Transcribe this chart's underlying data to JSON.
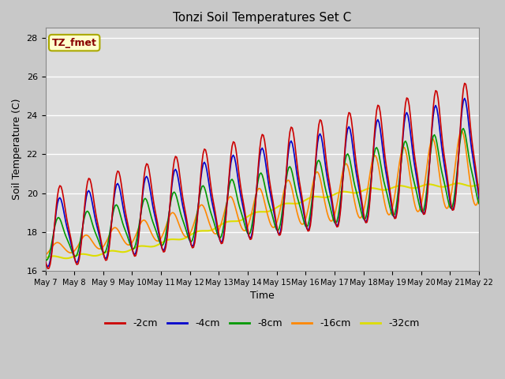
{
  "title": "Tonzi Soil Temperatures Set C",
  "xlabel": "Time",
  "ylabel": "Soil Temperature (C)",
  "ylim": [
    16,
    28.5
  ],
  "xlim": [
    0,
    360
  ],
  "fig_bg_color": "#c8c8c8",
  "plot_bg_color": "#dcdcdc",
  "grid_color": "#ffffff",
  "annotation_text": "TZ_fmet",
  "annotation_bg": "#ffffcc",
  "annotation_border": "#aaa800",
  "annotation_fg": "#880000",
  "series": {
    "-2cm": {
      "color": "#cc0000",
      "lw": 1.2
    },
    "-4cm": {
      "color": "#0000cc",
      "lw": 1.2
    },
    "-8cm": {
      "color": "#009900",
      "lw": 1.2
    },
    "-16cm": {
      "color": "#ff8800",
      "lw": 1.2
    },
    "-32cm": {
      "color": "#dddd00",
      "lw": 1.5
    }
  },
  "xtick_labels": [
    "May 7",
    "May 8",
    "May 9",
    "May 10",
    "May 11",
    "May 12",
    "May 13",
    "May 14",
    "May 15",
    "May 16",
    "May 17",
    "May 18",
    "May 19",
    "May 20",
    "May 21",
    "May 22"
  ],
  "xtick_positions": [
    0,
    24,
    48,
    72,
    96,
    120,
    144,
    168,
    192,
    216,
    240,
    264,
    288,
    312,
    336,
    360
  ]
}
